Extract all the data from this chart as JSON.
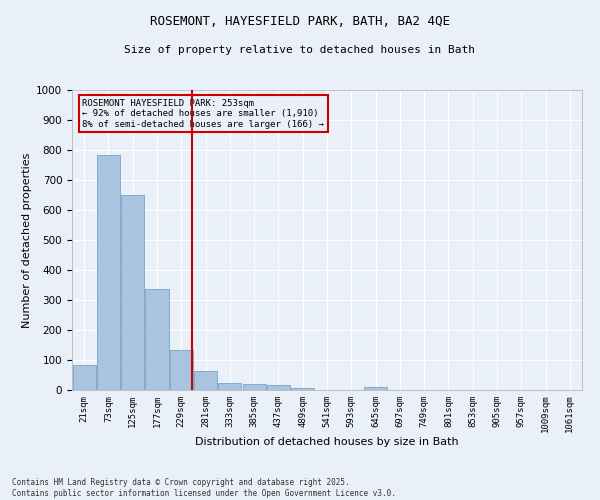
{
  "title1": "ROSEMONT, HAYESFIELD PARK, BATH, BA2 4QE",
  "title2": "Size of property relative to detached houses in Bath",
  "xlabel": "Distribution of detached houses by size in Bath",
  "ylabel": "Number of detached properties",
  "categories": [
    "21sqm",
    "73sqm",
    "125sqm",
    "177sqm",
    "229sqm",
    "281sqm",
    "333sqm",
    "385sqm",
    "437sqm",
    "489sqm",
    "541sqm",
    "593sqm",
    "645sqm",
    "697sqm",
    "749sqm",
    "801sqm",
    "853sqm",
    "905sqm",
    "957sqm",
    "1009sqm",
    "1061sqm"
  ],
  "values": [
    85,
    783,
    651,
    337,
    133,
    62,
    25,
    20,
    18,
    8,
    0,
    0,
    10,
    0,
    0,
    0,
    0,
    0,
    0,
    0,
    0
  ],
  "bar_color": "#aac4e0",
  "bar_edge_color": "#6699bb",
  "vline_color": "#cc0000",
  "vline_x": 4.46,
  "annotation_text": "ROSEMONT HAYESFIELD PARK: 253sqm\n← 92% of detached houses are smaller (1,910)\n8% of semi-detached houses are larger (166) →",
  "annotation_box_color": "#cc0000",
  "ylim": [
    0,
    1000
  ],
  "yticks": [
    0,
    100,
    200,
    300,
    400,
    500,
    600,
    700,
    800,
    900,
    1000
  ],
  "background_color": "#eaf0f8",
  "grid_color": "#ffffff",
  "footer": "Contains HM Land Registry data © Crown copyright and database right 2025.\nContains public sector information licensed under the Open Government Licence v3.0."
}
